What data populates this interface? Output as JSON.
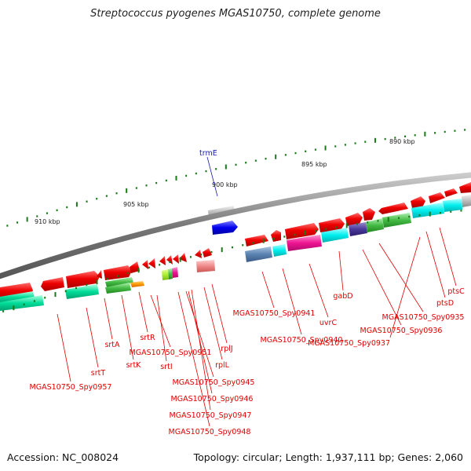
{
  "title": "Streptococcus pyogenes MGAS10750, complete genome",
  "footer": {
    "accession": "Accession: NC_008024",
    "stats": "Topology: circular; Length: 1,937,111 bp; Genes: 2,060"
  },
  "ticks": [
    "890 kbp",
    "895 kbp",
    "900 kbp",
    "905 kbp",
    "910 kbp"
  ],
  "highlight_gene": "trmE",
  "genes": [
    "srtT",
    "MGAS10750_Spy0957",
    "srtA",
    "srtK",
    "srtR",
    "MGAS10750_Spy0951",
    "srtI",
    "MGAS10750_Spy0945",
    "MGAS10750_Spy0946",
    "MGAS10750_Spy0947",
    "MGAS10750_Spy0948",
    "rplL",
    "rplJ",
    "MGAS10750_Spy0941",
    "MGAS10750_Spy0940",
    "uvrC",
    "gabD",
    "MGAS10750_Spy0935",
    "MGAS10750_Spy0936",
    "MGAS10750_Spy0937",
    "ptsD",
    "ptsC"
  ],
  "colors": {
    "backbone": "#888888",
    "gene_red": "#ee0000",
    "label_red": "#e00000",
    "tick_green": "#1a7a1a",
    "trme_blue": "#1a1ab0",
    "cyan": "#00eeee",
    "teal": "#5a82b0",
    "magenta": "#ee1493",
    "green": "#44bb44",
    "sea_green": "#00dd99",
    "navy": "#4a3a9a",
    "grey_feature": "#aaaaaa",
    "blue_feature": "#0000ee"
  }
}
